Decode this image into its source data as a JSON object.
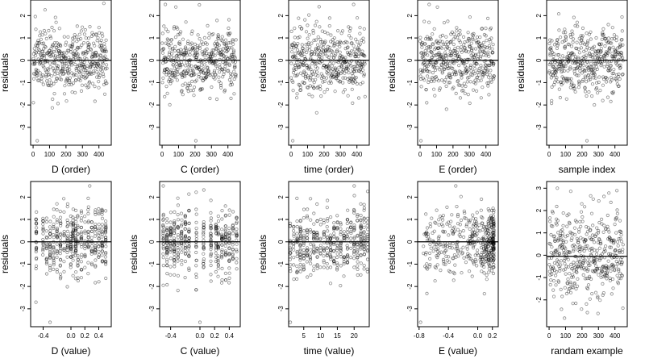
{
  "chart_data": [
    {
      "type": "scatter",
      "xlabel": "D (order)",
      "ylabel": "residuals",
      "xlim": [
        -15,
        475
      ],
      "ylim": [
        -3.8,
        2.7
      ],
      "xticks": [
        0,
        100,
        200,
        300,
        400
      ],
      "yticks": [
        2,
        1,
        0,
        -1,
        -2,
        -3
      ],
      "zero_line": true,
      "distribution": "uniform-index",
      "y_shift": 0,
      "y_spread": 0.75,
      "outliers": [
        [
          25,
          -3.6
        ],
        [
          430,
          2.55
        ]
      ]
    },
    {
      "type": "scatter",
      "xlabel": "C (order)",
      "ylabel": "residuals",
      "xlim": [
        -15,
        475
      ],
      "ylim": [
        -3.8,
        2.7
      ],
      "xticks": [
        0,
        100,
        200,
        300,
        400
      ],
      "yticks": [
        2,
        1,
        0,
        -1,
        -2,
        -3
      ],
      "zero_line": true,
      "distribution": "uniform-index",
      "y_shift": 0,
      "y_spread": 0.75,
      "outliers": [
        [
          20,
          2.5
        ],
        [
          205,
          -3.6
        ]
      ]
    },
    {
      "type": "scatter",
      "xlabel": "time (order)",
      "ylabel": "residuals",
      "xlim": [
        -15,
        475
      ],
      "ylim": [
        -3.8,
        2.7
      ],
      "xticks": [
        0,
        100,
        200,
        300,
        400
      ],
      "yticks": [
        2,
        1,
        0,
        -1,
        -2,
        -3
      ],
      "zero_line": true,
      "distribution": "uniform-index",
      "y_shift": 0,
      "y_spread": 0.75,
      "outliers": [
        [
          10,
          -3.6
        ],
        [
          380,
          2.5
        ]
      ]
    },
    {
      "type": "scatter",
      "xlabel": "E (order)",
      "ylabel": "residuals",
      "xlim": [
        -15,
        475
      ],
      "ylim": [
        -3.8,
        2.7
      ],
      "xticks": [
        0,
        100,
        200,
        300,
        400
      ],
      "yticks": [
        2,
        1,
        0,
        -1,
        -2,
        -3
      ],
      "zero_line": true,
      "distribution": "uniform-index",
      "y_shift": 0,
      "y_spread": 0.75,
      "outliers": [
        [
          5,
          -3.6
        ],
        [
          55,
          2.5
        ]
      ]
    },
    {
      "type": "scatter",
      "xlabel": "sample index",
      "ylabel": "residuals",
      "xlim": [
        -15,
        475
      ],
      "ylim": [
        -3.8,
        2.7
      ],
      "xticks": [
        0,
        100,
        200,
        300,
        400
      ],
      "yticks": [
        2,
        1,
        0,
        -1,
        -2,
        -3
      ],
      "zero_line": true,
      "distribution": "uniform-index",
      "y_shift": 0,
      "y_spread": 0.75,
      "outliers": [
        [
          230,
          -3.6
        ],
        [
          360,
          1.6
        ]
      ]
    },
    {
      "type": "scatter",
      "xlabel": "D (value)",
      "ylabel": "residuals",
      "xlim": [
        -0.58,
        0.58
      ],
      "ylim": [
        -3.8,
        2.7
      ],
      "xticks": [
        -0.4,
        0,
        0.2,
        0.4
      ],
      "xtick_labels": [
        "-0.4",
        "0.0",
        "0.2",
        "0.4"
      ],
      "yticks": [
        2,
        1,
        0,
        -1,
        -2,
        -3
      ],
      "zero_line": true,
      "distribution": "columns",
      "columns": [
        -0.5,
        -0.4,
        -0.35,
        -0.3,
        -0.25,
        -0.2,
        -0.15,
        -0.1,
        -0.05,
        0,
        0.03,
        0.07,
        0.1,
        0.15,
        0.2,
        0.25,
        0.3,
        0.35,
        0.4,
        0.45,
        0.5
      ],
      "y_shift": 0,
      "y_spread": 0.75,
      "outliers": [
        [
          -0.3,
          -3.6
        ],
        [
          0.27,
          2.5
        ]
      ]
    },
    {
      "type": "scatter",
      "xlabel": "C (value)",
      "ylabel": "residuals",
      "xlim": [
        -0.55,
        0.55
      ],
      "ylim": [
        -3.8,
        2.7
      ],
      "xticks": [
        -0.4,
        0,
        0.2,
        0.4
      ],
      "xtick_labels": [
        "-0.4",
        "0.0",
        "0.2",
        "0.4"
      ],
      "yticks": [
        2,
        1,
        0,
        -1,
        -2,
        -3
      ],
      "zero_line": true,
      "distribution": "columns",
      "columns": [
        -0.5,
        -0.45,
        -0.4,
        -0.35,
        -0.3,
        -0.25,
        -0.2,
        -0.15,
        -0.05,
        0.05,
        0.15,
        0.22,
        0.25,
        0.3,
        0.35,
        0.4,
        0.45,
        0.5
      ],
      "y_shift": 0,
      "y_spread": 0.75,
      "outliers": [
        [
          -0.5,
          2.5
        ],
        [
          0,
          -3.6
        ]
      ]
    },
    {
      "type": "scatter",
      "xlabel": "time (value)",
      "ylabel": "residuals",
      "xlim": [
        0.5,
        24.5
      ],
      "ylim": [
        -3.8,
        2.7
      ],
      "xticks": [
        5,
        10,
        15,
        20
      ],
      "yticks": [
        2,
        1,
        0,
        -1,
        -2,
        -3
      ],
      "zero_line": true,
      "distribution": "columns",
      "columns": [
        1,
        2,
        3,
        4,
        5,
        6,
        7,
        8,
        9,
        10,
        11,
        12,
        13,
        14,
        15,
        16,
        17,
        18,
        19,
        20,
        21,
        22,
        23,
        24
      ],
      "y_shift": 0,
      "y_spread": 0.75,
      "outliers": [
        [
          1,
          -3.6
        ],
        [
          20,
          2.5
        ]
      ]
    },
    {
      "type": "scatter",
      "xlabel": "E (value)",
      "ylabel": "residuals",
      "xlim": [
        -0.82,
        0.28
      ],
      "ylim": [
        -3.8,
        2.7
      ],
      "xticks": [
        -0.8,
        -0.4,
        0,
        0.2
      ],
      "xtick_labels": [
        "-0.8",
        "-0.4",
        "0.0",
        "0.2"
      ],
      "yticks": [
        2,
        1,
        0,
        -1,
        -2,
        -3
      ],
      "zero_line": true,
      "distribution": "skewed-right",
      "y_shift": 0,
      "y_spread": 0.75,
      "outliers": [
        [
          -0.78,
          -3.6
        ],
        [
          -0.3,
          2.5
        ]
      ]
    },
    {
      "type": "scatter",
      "xlabel": "randam example",
      "ylabel": "",
      "xlim": [
        -15,
        475
      ],
      "ylim": [
        -3.2,
        3.3
      ],
      "xticks": [
        0,
        100,
        200,
        300,
        400
      ],
      "yticks": [
        3,
        2,
        1,
        0,
        -1,
        -2
      ],
      "zero_line": true,
      "zero_value": -0.05,
      "distribution": "uniform-index",
      "y_shift": 0,
      "y_spread": 1.0,
      "outliers": [
        [
          50,
          3.0
        ]
      ]
    }
  ]
}
